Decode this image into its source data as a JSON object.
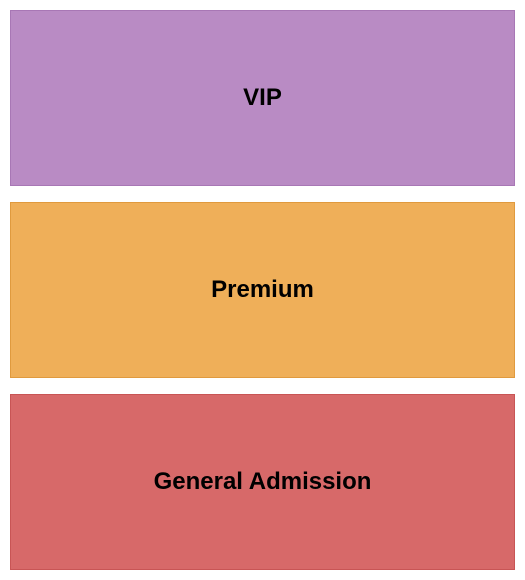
{
  "seating_chart": {
    "type": "infographic",
    "background_color": "#ffffff",
    "gap": 16,
    "padding": 10,
    "sections": [
      {
        "label": "VIP",
        "background_color": "#b98bc4",
        "border_color": "#a877b5",
        "font_size": 24,
        "font_weight": "bold",
        "text_color": "#000000"
      },
      {
        "label": "Premium",
        "background_color": "#efaf59",
        "border_color": "#e09a3e",
        "font_size": 24,
        "font_weight": "bold",
        "text_color": "#000000"
      },
      {
        "label": "General Admission",
        "background_color": "#d76969",
        "border_color": "#c85555",
        "font_size": 24,
        "font_weight": "bold",
        "text_color": "#000000"
      }
    ]
  }
}
